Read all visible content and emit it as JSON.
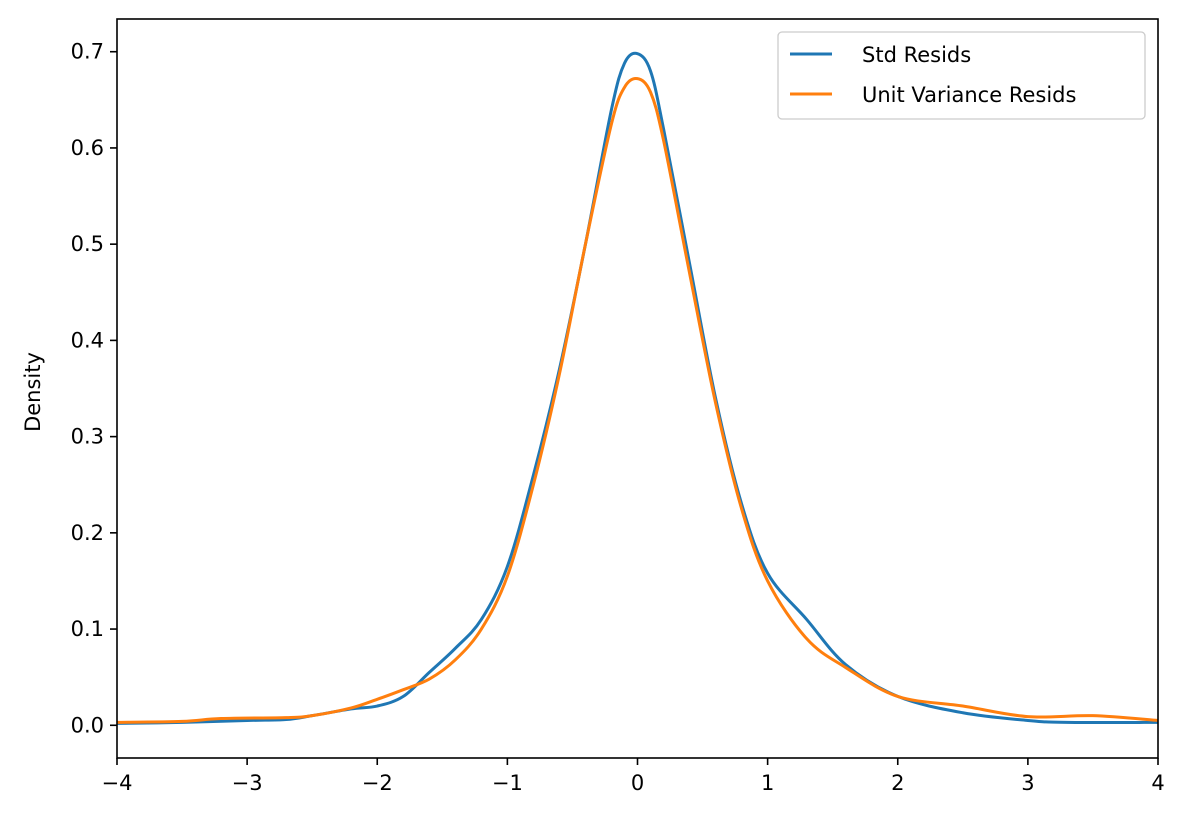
{
  "chart_data": {
    "type": "line",
    "title": "",
    "xlabel": "",
    "ylabel": "Density",
    "xlim": [
      -4,
      4
    ],
    "ylim": [
      -0.034,
      0.734
    ],
    "xticks": [
      -4,
      -3,
      -2,
      -1,
      0,
      1,
      2,
      3,
      4
    ],
    "xtick_labels": [
      "−4",
      "−3",
      "−2",
      "−1",
      "0",
      "1",
      "2",
      "3",
      "4"
    ],
    "yticks": [
      0.0,
      0.1,
      0.2,
      0.3,
      0.4,
      0.5,
      0.6,
      0.7
    ],
    "ytick_labels": [
      "0.0",
      "0.1",
      "0.2",
      "0.3",
      "0.4",
      "0.5",
      "0.6",
      "0.7"
    ],
    "grid": false,
    "legend_position": "top-right",
    "series": [
      {
        "name": "Std Resids",
        "color": "#1f77b4",
        "x": [
          -4.0,
          -3.5,
          -3.0,
          -2.7,
          -2.5,
          -2.2,
          -2.0,
          -1.8,
          -1.6,
          -1.4,
          -1.2,
          -1.0,
          -0.8,
          -0.6,
          -0.4,
          -0.2,
          -0.1,
          0.0,
          0.1,
          0.2,
          0.4,
          0.6,
          0.8,
          1.0,
          1.3,
          1.6,
          2.0,
          2.5,
          3.0,
          3.3,
          4.0
        ],
        "y": [
          0.002,
          0.003,
          0.005,
          0.006,
          0.01,
          0.017,
          0.02,
          0.03,
          0.055,
          0.08,
          0.11,
          0.165,
          0.26,
          0.37,
          0.5,
          0.64,
          0.688,
          0.698,
          0.68,
          0.62,
          0.48,
          0.34,
          0.23,
          0.158,
          0.11,
          0.063,
          0.03,
          0.013,
          0.005,
          0.003,
          0.003
        ]
      },
      {
        "name": "Unit Variance Resids",
        "color": "#ff7f0e",
        "x": [
          -4.0,
          -3.5,
          -3.2,
          -2.7,
          -2.5,
          -2.2,
          -2.0,
          -1.8,
          -1.6,
          -1.4,
          -1.2,
          -1.0,
          -0.8,
          -0.6,
          -0.4,
          -0.2,
          -0.1,
          0.0,
          0.1,
          0.2,
          0.4,
          0.6,
          0.8,
          1.0,
          1.3,
          1.6,
          2.0,
          2.5,
          3.0,
          3.5,
          4.0
        ],
        "y": [
          0.003,
          0.004,
          0.007,
          0.008,
          0.01,
          0.018,
          0.027,
          0.037,
          0.048,
          0.068,
          0.1,
          0.155,
          0.25,
          0.365,
          0.5,
          0.625,
          0.663,
          0.672,
          0.658,
          0.608,
          0.47,
          0.335,
          0.225,
          0.15,
          0.09,
          0.06,
          0.03,
          0.02,
          0.009,
          0.01,
          0.005
        ]
      }
    ]
  }
}
